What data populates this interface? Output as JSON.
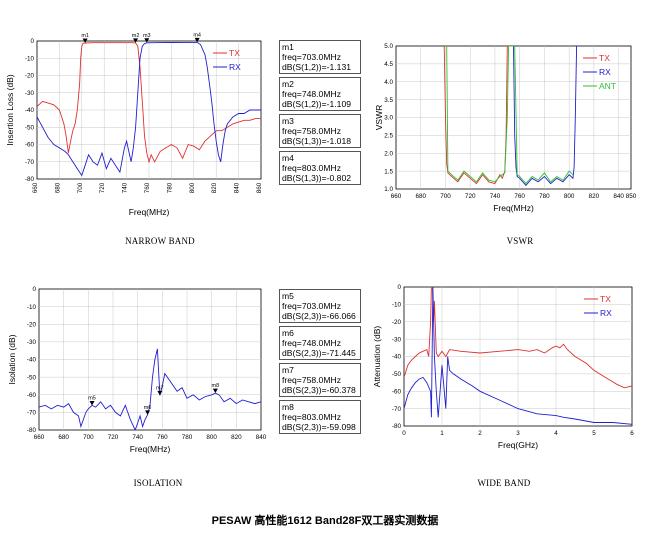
{
  "title": "PESAW 高性能1612 Band28F双工器实测数据",
  "captions": {
    "narrow": "NARROW BAND",
    "vswr": "VSWR",
    "isolation": "ISOLATION",
    "wide": "WIDE BAND"
  },
  "colors": {
    "tx": "#e03030",
    "rx": "#2020d0",
    "ant": "#30c030",
    "grid": "#c8c8c8",
    "axis": "#000000"
  },
  "markers_narrow": [
    {
      "id": "m1",
      "name": "m1",
      "freq": "freq=703.0MHz",
      "value": "dB(S(1,2))=-1.131",
      "x": 703.0,
      "y": -1.131
    },
    {
      "id": "m2",
      "name": "m2",
      "freq": "freq=748.0MHz",
      "value": "dB(S(1,2))=-1.109",
      "x": 748.0,
      "y": -1.109
    },
    {
      "id": "m3",
      "name": "m3",
      "freq": "freq=758.0MHz",
      "value": "dB(S(1,3))=-1.018",
      "x": 758.0,
      "y": -1.018
    },
    {
      "id": "m4",
      "name": "m4",
      "freq": "freq=803.0MHz",
      "value": "dB(S(1,3))=-0.802",
      "x": 803.0,
      "y": -0.802
    }
  ],
  "markers_isolation": [
    {
      "id": "m5",
      "name": "m5",
      "freq": "freq=703.0MHz",
      "value": "dB(S(2,3))=-66.066",
      "x": 703.0,
      "y": -66.066
    },
    {
      "id": "m6",
      "name": "m6",
      "freq": "freq=748.0MHz",
      "value": "dB(S(2,3))=-71.445",
      "x": 748.0,
      "y": -71.445
    },
    {
      "id": "m7",
      "name": "m7",
      "freq": "freq=758.0MHz",
      "value": "dB(S(2,3))=-60.378",
      "x": 758.0,
      "y": -60.378
    },
    {
      "id": "m8",
      "name": "m8",
      "freq": "freq=803.0MHz",
      "value": "dB(S(2,3))=-59.098",
      "x": 803.0,
      "y": -59.098
    }
  ],
  "chart_data": [
    {
      "id": "narrow",
      "type": "line",
      "xlabel": "Freq(MHz)",
      "ylabel": "Insertion Loss (dB)",
      "xlim": [
        660,
        860
      ],
      "ylim": [
        -80,
        0
      ],
      "xticks": [
        "660",
        "680",
        "700",
        "720",
        "740",
        "760",
        "780",
        "800",
        "820",
        "840",
        "860"
      ],
      "yticks": [
        "0",
        "-10",
        "-20",
        "-30",
        "-40",
        "-50",
        "-60",
        "-70",
        "-80"
      ],
      "grid": true,
      "legend_position": "top-right",
      "series": [
        {
          "name": "TX",
          "color": "tx",
          "x": [
            660,
            665,
            670,
            675,
            680,
            684,
            686,
            688,
            690,
            692,
            694,
            696,
            698,
            699,
            700,
            701,
            702,
            703,
            710,
            720,
            730,
            740,
            745,
            748,
            750,
            752,
            754,
            756,
            758,
            760,
            762,
            765,
            770,
            775,
            780,
            785,
            790,
            795,
            800,
            805,
            810,
            815,
            820,
            825,
            830,
            835,
            840,
            845,
            850,
            855,
            860
          ],
          "y": [
            -38,
            -35,
            -36,
            -37,
            -40,
            -48,
            -55,
            -65,
            -58,
            -52,
            -48,
            -40,
            -25,
            -10,
            -3,
            -1.5,
            -1.2,
            -1.131,
            -1.0,
            -1.0,
            -1.0,
            -1.0,
            -1.0,
            -1.109,
            -3,
            -15,
            -35,
            -55,
            -65,
            -70,
            -66,
            -70,
            -64,
            -62,
            -60,
            -62,
            -68,
            -60,
            -61,
            -63,
            -58,
            -55,
            -52,
            -52,
            -50,
            -48,
            -47,
            -46,
            -46,
            -45,
            -45
          ]
        },
        {
          "name": "RX",
          "color": "rx",
          "x": [
            660,
            665,
            670,
            675,
            680,
            685,
            688,
            690,
            692,
            694,
            696,
            698,
            700,
            702,
            704,
            706,
            708,
            710,
            714,
            718,
            722,
            726,
            730,
            734,
            738,
            740,
            742,
            744,
            746,
            748,
            750,
            752,
            754,
            756,
            758,
            770,
            780,
            790,
            800,
            803,
            806,
            810,
            812,
            814,
            816,
            818,
            820,
            822,
            824,
            826,
            828,
            830,
            835,
            840,
            845,
            850,
            855,
            860
          ],
          "y": [
            -44,
            -50,
            -56,
            -60,
            -62,
            -64,
            -66,
            -68,
            -70,
            -72,
            -74,
            -76,
            -78,
            -74,
            -70,
            -66,
            -68,
            -70,
            -72,
            -65,
            -74,
            -68,
            -72,
            -76,
            -62,
            -58,
            -64,
            -70,
            -62,
            -50,
            -30,
            -10,
            -3,
            -1.5,
            -1.018,
            -0.9,
            -0.85,
            -0.8,
            -0.8,
            -0.802,
            -2,
            -8,
            -15,
            -25,
            -35,
            -48,
            -58,
            -66,
            -70,
            -60,
            -52,
            -48,
            -44,
            -42,
            -42,
            -40,
            -40,
            -40
          ]
        }
      ]
    },
    {
      "id": "vswr",
      "type": "line",
      "xlabel": "Freq(MHz)",
      "ylabel": "VSWR",
      "xlim": [
        660,
        850
      ],
      "ylim": [
        1.0,
        5.0
      ],
      "xticks": [
        "660",
        "680",
        "700",
        "720",
        "740",
        "760",
        "780",
        "800",
        "820",
        "840",
        "850"
      ],
      "yticks": [
        "1.0",
        "1.5",
        "2.0",
        "2.5",
        "3.0",
        "3.5",
        "4.0",
        "4.5",
        "5.0"
      ],
      "grid": true,
      "legend_position": "top-right",
      "series": [
        {
          "name": "TX",
          "color": "tx",
          "x": [
            699,
            700,
            701,
            702,
            705,
            710,
            715,
            720,
            725,
            730,
            735,
            740,
            744,
            746,
            748,
            749,
            750,
            751,
            752,
            753
          ],
          "y": [
            5.0,
            3.0,
            1.7,
            1.45,
            1.35,
            1.2,
            1.45,
            1.3,
            1.15,
            1.4,
            1.2,
            1.15,
            1.4,
            1.3,
            1.5,
            2.5,
            5.0,
            5.0,
            5.0,
            5.0
          ]
        },
        {
          "name": "RX",
          "color": "rx",
          "x": [
            754,
            755,
            756,
            757,
            758,
            760,
            765,
            770,
            775,
            780,
            785,
            790,
            795,
            800,
            803,
            804,
            805,
            806
          ],
          "y": [
            5.0,
            5.0,
            2.5,
            1.6,
            1.35,
            1.3,
            1.1,
            1.3,
            1.2,
            1.35,
            1.15,
            1.3,
            1.2,
            1.4,
            1.3,
            1.6,
            3.0,
            5.0
          ]
        },
        {
          "name": "ANT",
          "color": "ant",
          "x": [
            701,
            702,
            705,
            710,
            715,
            720,
            725,
            730,
            735,
            740,
            744,
            748,
            750,
            751,
            756,
            758,
            760,
            765,
            770,
            775,
            780,
            785,
            790,
            795,
            800,
            803
          ],
          "y": [
            5.0,
            1.5,
            1.4,
            1.25,
            1.5,
            1.35,
            1.2,
            1.45,
            1.25,
            1.2,
            1.35,
            1.45,
            3.0,
            5.0,
            5.0,
            1.4,
            1.35,
            1.15,
            1.35,
            1.25,
            1.45,
            1.2,
            1.35,
            1.25,
            1.5,
            1.4
          ]
        }
      ]
    },
    {
      "id": "isolation",
      "type": "line",
      "xlabel": "Freq(MHz)",
      "ylabel": "Isolation (dB)",
      "xlim": [
        660,
        840
      ],
      "ylim": [
        -80,
        0
      ],
      "xticks": [
        "660",
        "680",
        "700",
        "720",
        "740",
        "760",
        "780",
        "800",
        "820",
        "840"
      ],
      "yticks": [
        "0",
        "-10",
        "-20",
        "-30",
        "-40",
        "-50",
        "-60",
        "-70",
        "-80"
      ],
      "grid": true,
      "series": [
        {
          "name": "S(2,3)",
          "color": "rx",
          "x": [
            660,
            665,
            670,
            675,
            680,
            684,
            688,
            692,
            694,
            696,
            698,
            700,
            703,
            706,
            710,
            714,
            718,
            722,
            726,
            730,
            734,
            738,
            740,
            742,
            744,
            746,
            748,
            750,
            752,
            754,
            756,
            758,
            760,
            762,
            764,
            768,
            772,
            776,
            780,
            785,
            790,
            795,
            800,
            803,
            806,
            810,
            815,
            820,
            825,
            830,
            835,
            840
          ],
          "y": [
            -67,
            -66,
            -68,
            -66,
            -67,
            -65,
            -70,
            -72,
            -78,
            -74,
            -70,
            -68,
            -66.066,
            -67,
            -64,
            -68,
            -66,
            -70,
            -72,
            -66,
            -74,
            -80,
            -76,
            -72,
            -78,
            -74,
            -71.445,
            -66,
            -50,
            -40,
            -34,
            -60.378,
            -55,
            -48,
            -50,
            -54,
            -58,
            -56,
            -62,
            -60,
            -63,
            -61,
            -60,
            -59.098,
            -60,
            -64,
            -62,
            -65,
            -63,
            -64,
            -65,
            -64
          ]
        }
      ]
    },
    {
      "id": "wide",
      "type": "line",
      "xlabel": "Freq(GHz)",
      "ylabel": "Attenuation (dB)",
      "xlim": [
        0,
        6
      ],
      "ylim": [
        -80,
        0
      ],
      "xticks": [
        "0",
        "1",
        "2",
        "3",
        "4",
        "5",
        "6"
      ],
      "yticks": [
        "0",
        "-10",
        "-20",
        "-30",
        "-40",
        "-50",
        "-60",
        "-70",
        "-80"
      ],
      "grid": true,
      "legend_position": "top-right",
      "series": [
        {
          "name": "TX",
          "color": "tx",
          "x": [
            0,
            0.1,
            0.2,
            0.3,
            0.4,
            0.5,
            0.6,
            0.65,
            0.7,
            0.72,
            0.75,
            0.78,
            0.8,
            0.85,
            0.9,
            1.0,
            1.1,
            1.2,
            1.5,
            2.0,
            2.5,
            3.0,
            3.3,
            3.5,
            3.7,
            3.9,
            4.0,
            4.1,
            4.2,
            4.3,
            4.5,
            4.8,
            5.0,
            5.3,
            5.6,
            5.8,
            6.0
          ],
          "y": [
            -52,
            -45,
            -42,
            -40,
            -38,
            -37,
            -36,
            -40,
            -20,
            0,
            0,
            -20,
            -8,
            -38,
            -40,
            -37,
            -40,
            -36,
            -37,
            -38,
            -37,
            -36,
            -37,
            -36,
            -38,
            -35,
            -34,
            -35,
            -33,
            -36,
            -40,
            -44,
            -48,
            -52,
            -56,
            -58,
            -57
          ]
        },
        {
          "name": "RX",
          "color": "rx",
          "x": [
            0,
            0.1,
            0.2,
            0.3,
            0.4,
            0.5,
            0.6,
            0.7,
            0.72,
            0.75,
            0.76,
            0.8,
            0.85,
            0.9,
            1.0,
            1.1,
            1.15,
            1.2,
            1.3,
            1.5,
            1.8,
            2.0,
            2.5,
            3.0,
            3.5,
            4.0,
            4.2,
            4.5,
            5.0,
            5.5,
            6.0
          ],
          "y": [
            -70,
            -62,
            -58,
            -55,
            -53,
            -52,
            -55,
            -60,
            -75,
            -20,
            0,
            -40,
            -60,
            -75,
            -45,
            -70,
            -40,
            -48,
            -50,
            -53,
            -57,
            -60,
            -65,
            -70,
            -73,
            -74,
            -75,
            -76,
            -78,
            -78,
            -79
          ]
        }
      ]
    }
  ]
}
